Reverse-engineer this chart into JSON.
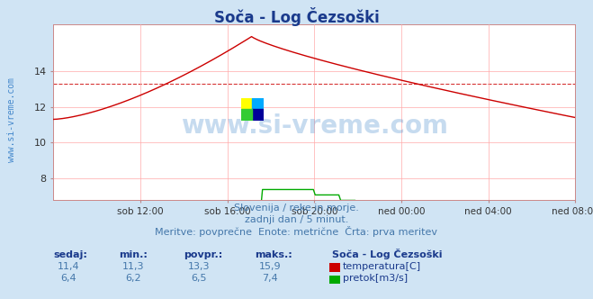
{
  "title": "Soča - Log Čezsoški",
  "title_color": "#1a3a8c",
  "bg_color": "#d0e4f4",
  "plot_bg_color": "#ffffff",
  "grid_color": "#ffaaaa",
  "x_labels": [
    "sob 12:00",
    "sob 16:00",
    "sob 20:00",
    "ned 00:00",
    "ned 04:00",
    "ned 08:00"
  ],
  "yticks": [
    8,
    10,
    12,
    14
  ],
  "ylim": [
    6.8,
    16.6
  ],
  "avg_temp": 13.3,
  "watermark_text": "www.si-vreme.com",
  "subtitle1": "Slovenija / reke in morje.",
  "subtitle2": "zadnji dan / 5 minut.",
  "subtitle3": "Meritve: povprečne  Enote: metrične  Črta: prva meritev",
  "legend_title": "Soča - Log Čezsoški",
  "stats_headers": [
    "sedaj:",
    "min.:",
    "povpr.:",
    "maks.:"
  ],
  "temp_stats": [
    "11,4",
    "11,3",
    "13,3",
    "15,9"
  ],
  "flow_stats": [
    "6,4",
    "6,2",
    "6,5",
    "7,4"
  ],
  "temp_label": "temperatura[C]",
  "flow_label": "pretok[m3/s]",
  "temp_color": "#cc0000",
  "flow_color": "#00aa00",
  "ylabel_text": "www.si-vreme.com",
  "ylabel_color": "#4488cc"
}
